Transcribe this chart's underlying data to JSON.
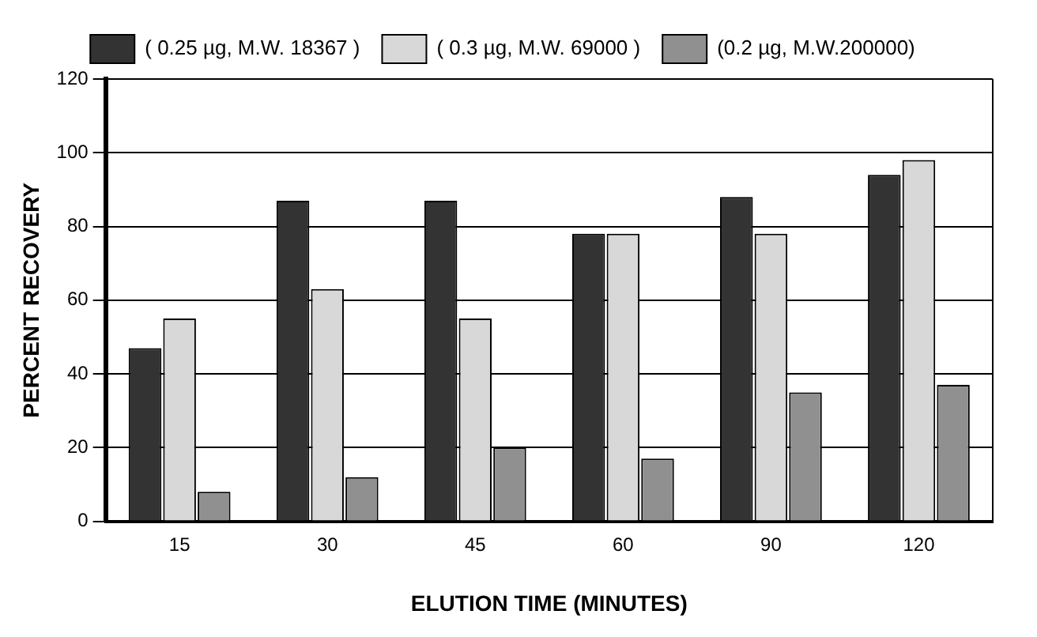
{
  "chart_data": {
    "type": "bar",
    "xlabel": "ELUTION TIME (MINUTES)",
    "ylabel": "PERCENT RECOVERY",
    "categories": [
      "15",
      "30",
      "45",
      "60",
      "90",
      "120"
    ],
    "series": [
      {
        "name": "( 0.25 µg, M.W. 18367 )",
        "color": "#333333",
        "values": [
          47,
          87,
          87,
          78,
          88,
          94
        ]
      },
      {
        "name": "( 0.3 µg, M.W. 69000 )",
        "color": "#d8d8d8",
        "values": [
          55,
          63,
          55,
          78,
          78,
          98
        ]
      },
      {
        "name": "(0.2 µg, M.W.200000)",
        "color": "#909090",
        "values": [
          8,
          12,
          20,
          17,
          35,
          37
        ]
      }
    ],
    "ylim": [
      0,
      120
    ],
    "yticks": [
      0,
      20,
      40,
      60,
      80,
      100,
      120
    ],
    "grid": "y",
    "legend": "top"
  }
}
